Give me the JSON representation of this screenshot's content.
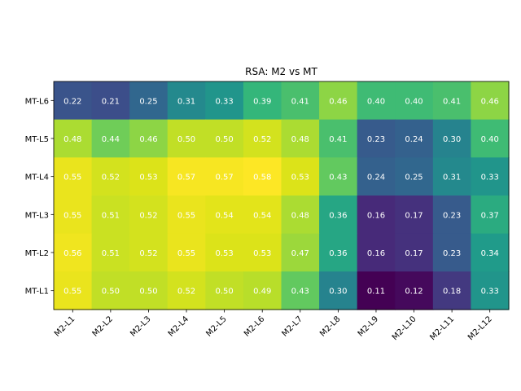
{
  "chart_data": {
    "type": "heatmap",
    "title": "RSA: M2 vs MT",
    "xlabel": "",
    "ylabel": "",
    "x_categories": [
      "M2-L1",
      "M2-L2",
      "M2-L3",
      "M2-L4",
      "M2-L5",
      "M2-L6",
      "M2-L7",
      "M2-L8",
      "M2-L9",
      "M2-L10",
      "M2-L11",
      "M2-L12"
    ],
    "y_categories": [
      "MT-L6",
      "MT-L5",
      "MT-L4",
      "MT-L3",
      "MT-L2",
      "MT-L1"
    ],
    "values": [
      [
        0.22,
        0.21,
        0.25,
        0.31,
        0.33,
        0.39,
        0.41,
        0.46,
        0.4,
        0.4,
        0.41,
        0.46
      ],
      [
        0.48,
        0.44,
        0.46,
        0.5,
        0.5,
        0.52,
        0.48,
        0.41,
        0.23,
        0.24,
        0.3,
        0.4
      ],
      [
        0.55,
        0.52,
        0.53,
        0.57,
        0.57,
        0.58,
        0.53,
        0.43,
        0.24,
        0.25,
        0.31,
        0.33
      ],
      [
        0.55,
        0.51,
        0.52,
        0.55,
        0.54,
        0.54,
        0.48,
        0.36,
        0.16,
        0.17,
        0.23,
        0.37
      ],
      [
        0.56,
        0.51,
        0.52,
        0.55,
        0.53,
        0.53,
        0.47,
        0.36,
        0.16,
        0.17,
        0.23,
        0.34
      ],
      [
        0.55,
        0.5,
        0.5,
        0.52,
        0.5,
        0.49,
        0.43,
        0.3,
        0.11,
        0.12,
        0.18,
        0.33
      ]
    ],
    "colormap": "viridis",
    "vmin": 0.11,
    "vmax": 0.58,
    "value_format": "2 decimals",
    "colors": {
      "cell_text": "#ffffff",
      "axis": "#000000"
    }
  }
}
